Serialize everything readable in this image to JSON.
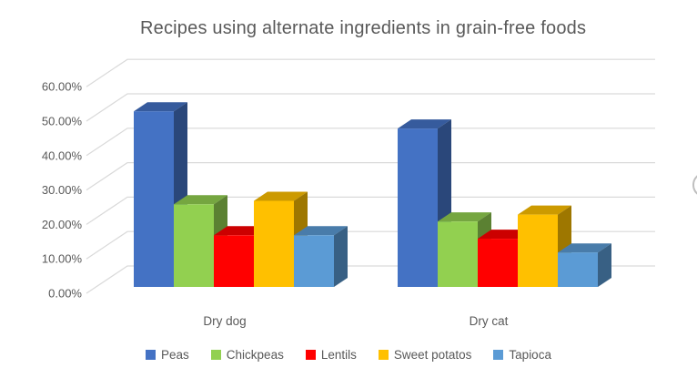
{
  "chart_data": {
    "type": "bar",
    "style": "3d-clustered-column",
    "title": "Recipes using alternate ingredients in grain-free foods",
    "categories": [
      "Dry dog",
      "Dry cat"
    ],
    "series": [
      {
        "name": "Peas",
        "color": "#4472C4",
        "values": [
          51,
          46
        ]
      },
      {
        "name": "Chickpeas",
        "color": "#92D050",
        "values": [
          24,
          19
        ]
      },
      {
        "name": "Lentils",
        "color": "#FF0000",
        "values": [
          15,
          14
        ]
      },
      {
        "name": "Sweet potatos",
        "color": "#FFC000",
        "values": [
          25,
          21
        ]
      },
      {
        "name": "Tapioca",
        "color": "#5B9BD5",
        "values": [
          15,
          10
        ]
      }
    ],
    "y_ticks": [
      "0.00%",
      "10.00%",
      "20.00%",
      "30.00%",
      "40.00%",
      "50.00%",
      "60.00%"
    ],
    "ylim": [
      0,
      60
    ],
    "grid": true,
    "gridline_color": "#D9D9D9",
    "text_color": "#595959",
    "legend_position": "bottom",
    "xlabel": "",
    "ylabel": ""
  }
}
